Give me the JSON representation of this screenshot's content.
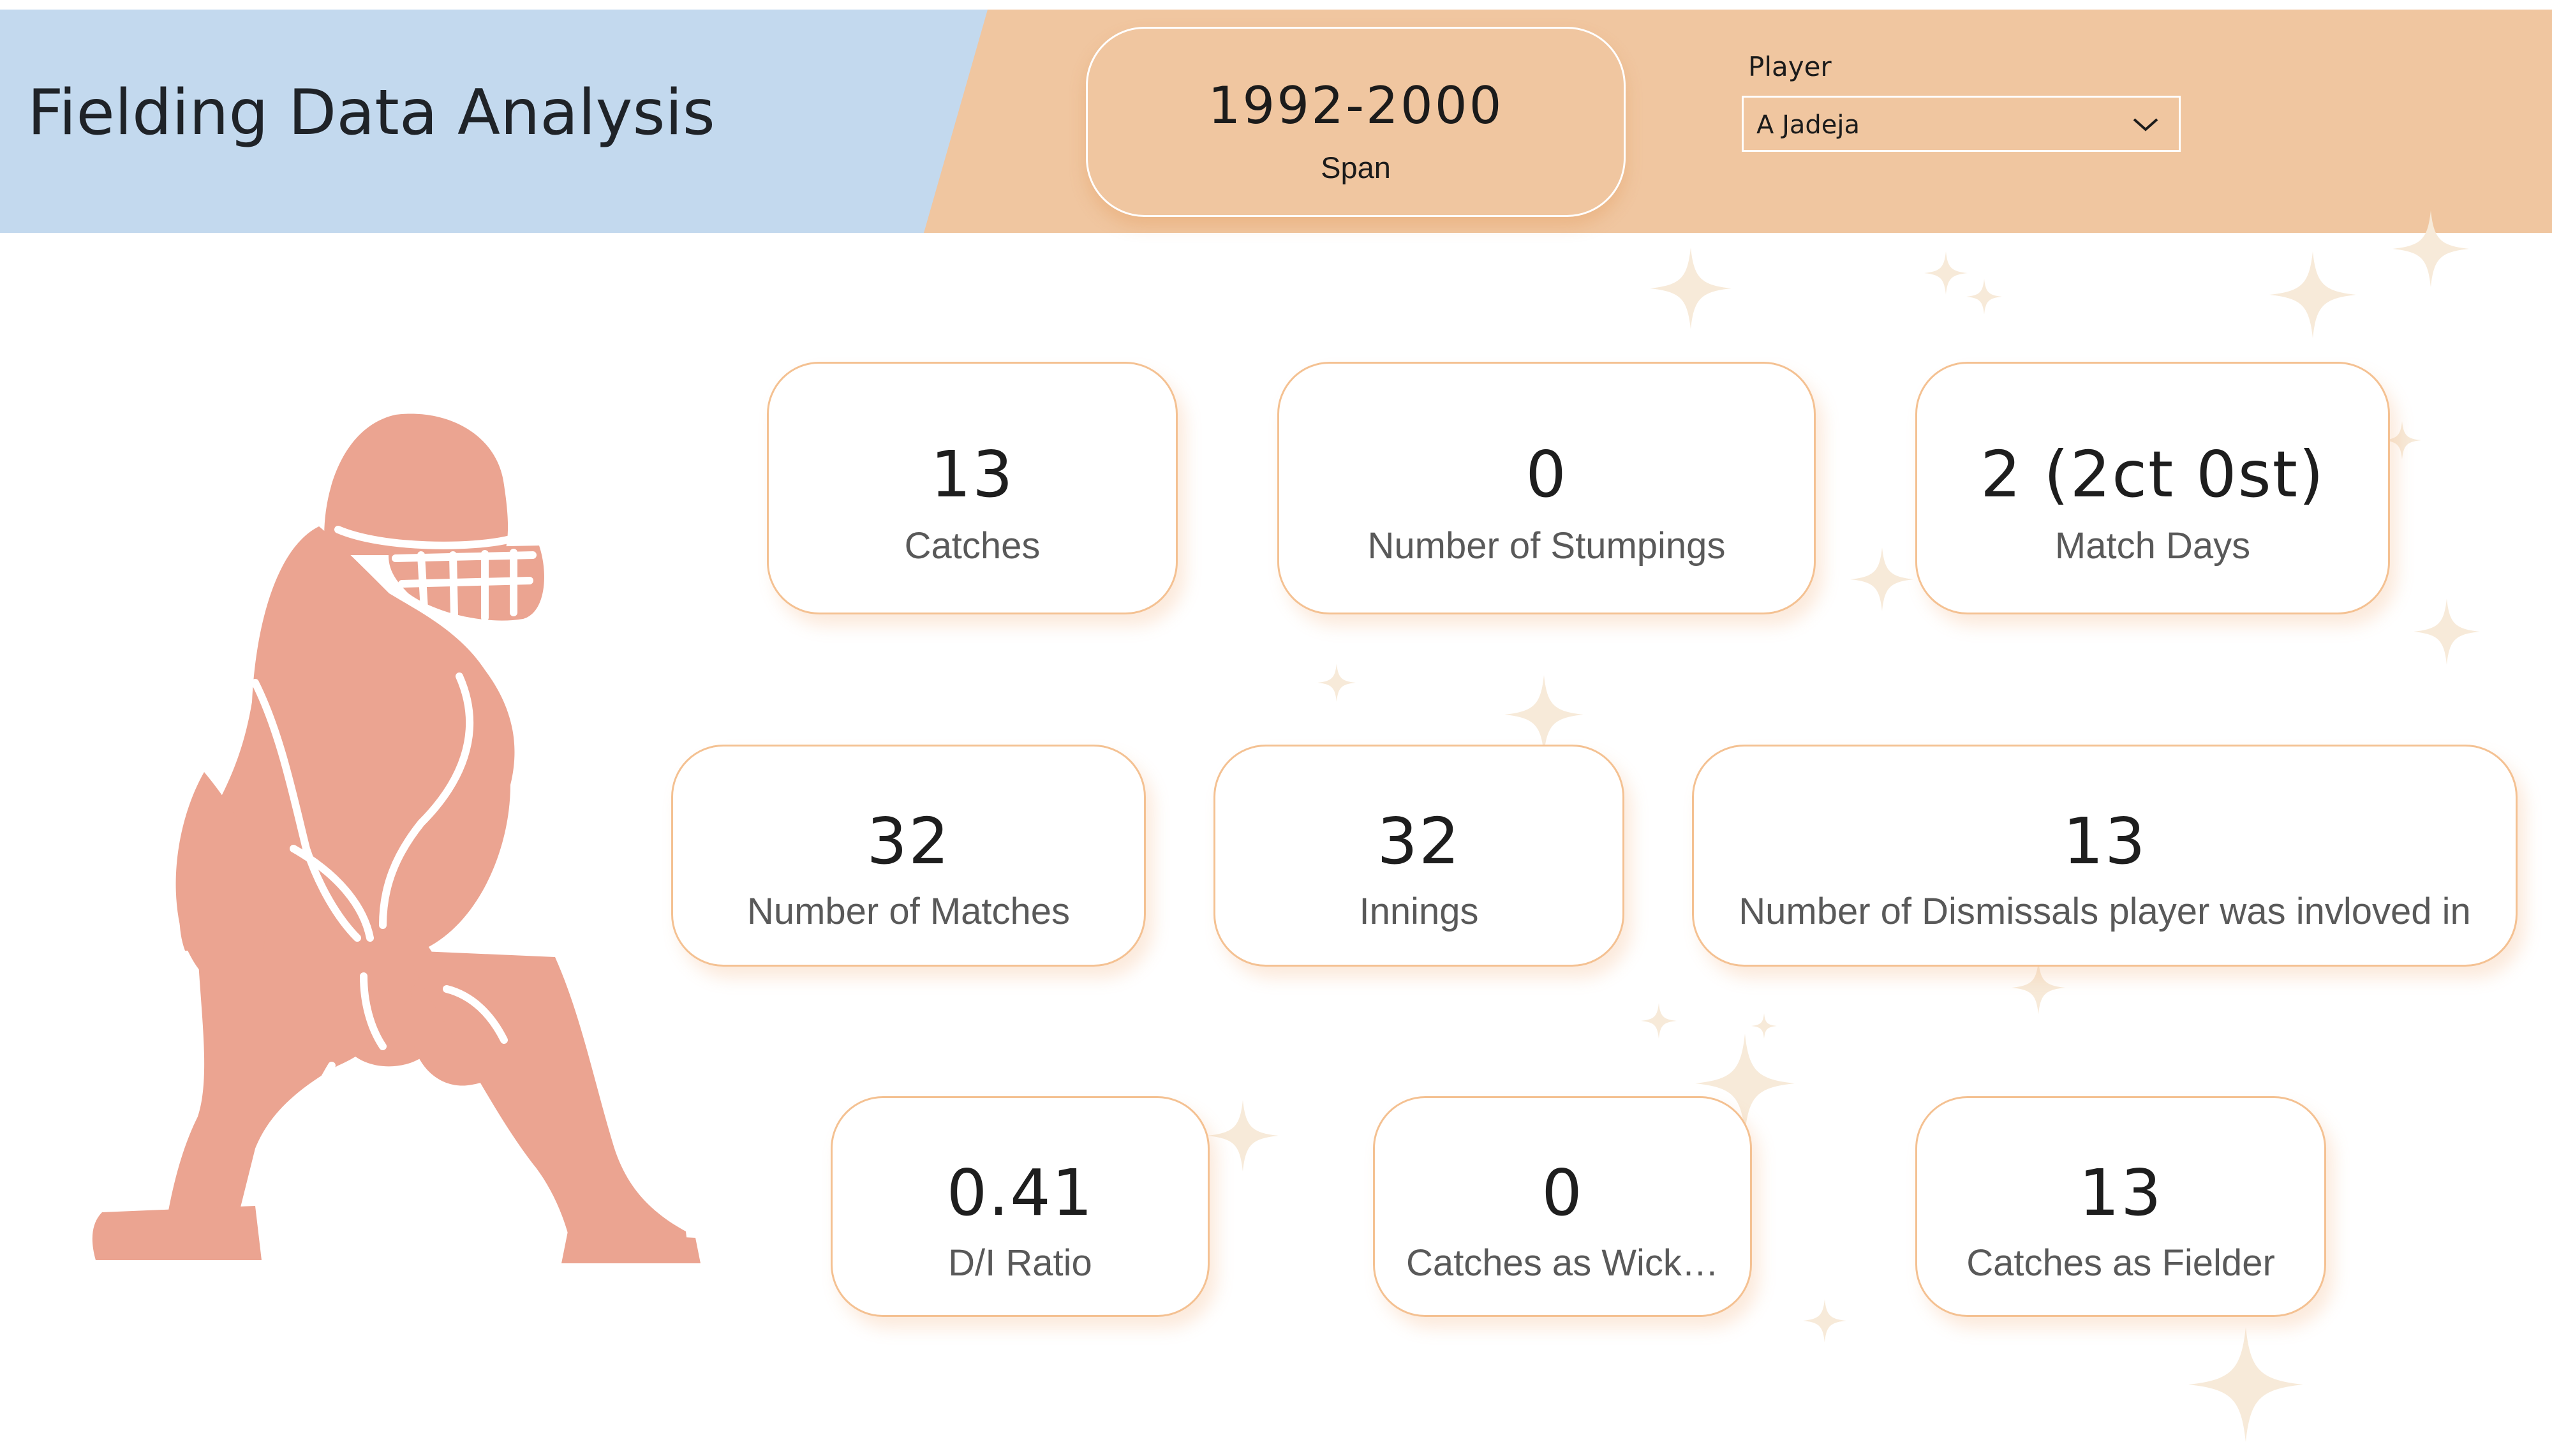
{
  "header": {
    "title": "Fielding Data Analysis",
    "span_value": "1992-2000",
    "span_label": "Span",
    "player_filter": {
      "label": "Player",
      "selected": "A Jadeja"
    }
  },
  "colors": {
    "title_band": "#c3d9ee",
    "header_band": "#f0c6a0",
    "figure": "#eba491",
    "card_border": "#f4c192"
  },
  "icons": {
    "figure": "wicketkeeper-silhouette",
    "dropdown": "chevron-down-icon"
  },
  "kpis": {
    "catches": {
      "value": "13",
      "label": "Catches"
    },
    "stumpings": {
      "value": "0",
      "label": "Number of Stumpings"
    },
    "match_days": {
      "value": "2 (2ct 0st)",
      "label": "Match Days"
    },
    "matches": {
      "value": "32",
      "label": "Number of Matches"
    },
    "innings": {
      "value": "32",
      "label": "Innings"
    },
    "dismissals": {
      "value": "13",
      "label": "Number of Dismissals player was invloved in"
    },
    "di_ratio": {
      "value": "0.41",
      "label": "D/I Ratio"
    },
    "catches_wk": {
      "value": "0",
      "label": "Catches as Wick…"
    },
    "catches_fielder": {
      "value": "13",
      "label": "Catches as Fielder"
    }
  }
}
